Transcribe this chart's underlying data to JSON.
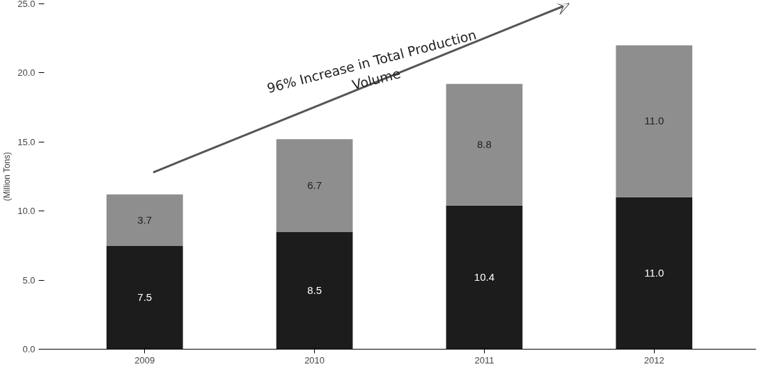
{
  "chart_data": {
    "type": "bar",
    "stacked": true,
    "categories": [
      "2009",
      "2010",
      "2011",
      "2012"
    ],
    "series": [
      {
        "color": "#1c1c1c",
        "values": [
          7.5,
          8.5,
          10.4,
          11.0
        ],
        "value_labels": [
          "7.5",
          "8.5",
          "10.4",
          "11.0"
        ]
      },
      {
        "color": "#8e8e8e",
        "values": [
          3.7,
          6.7,
          8.8,
          11.0
        ],
        "value_labels": [
          "3.7",
          "6.7",
          "8.8",
          "11.0"
        ]
      }
    ],
    "ylabel": "(Million Tons)",
    "ylim": [
      0,
      25
    ],
    "yticks": [
      {
        "value": 0,
        "label": "0.0"
      },
      {
        "value": 5,
        "label": "5.0"
      },
      {
        "value": 10,
        "label": "10.0"
      },
      {
        "value": 15,
        "label": "15.0"
      },
      {
        "value": 20,
        "label": "20.0"
      },
      {
        "value": 25,
        "label": "25.0"
      }
    ],
    "grid": false,
    "annotations": [
      "96% Increase in Total Production\nVolume"
    ]
  }
}
